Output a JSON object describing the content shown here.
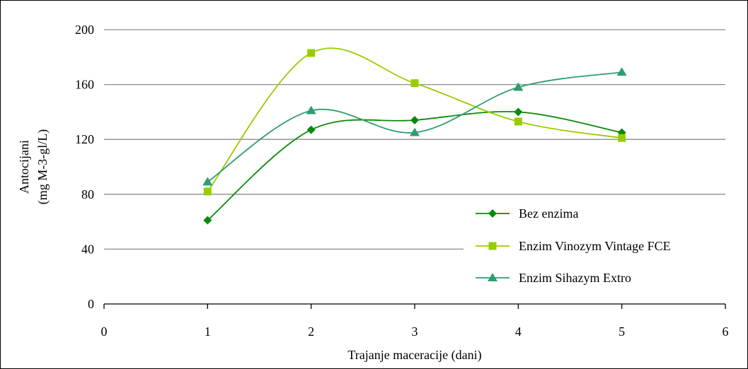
{
  "chart_data": {
    "type": "line",
    "title": "",
    "xlabel": "Trajanje maceracije (dani)",
    "ylabel": [
      "Antocijani",
      "(mg M-3-gl/L)"
    ],
    "x_ticks": [
      "0",
      "1",
      "2",
      "3",
      "4",
      "5",
      "6"
    ],
    "y_ticks": [
      "0",
      "40",
      "80",
      "120",
      "160",
      "200"
    ],
    "xlim": [
      0,
      6
    ],
    "ylim": [
      0,
      200
    ],
    "grid": "horizontal",
    "legend_position": "right",
    "smoothed": true,
    "series": [
      {
        "name": "Bez enzima",
        "marker": "diamond",
        "color": "#0a8a0a",
        "x": [
          1,
          2,
          3,
          4,
          5
        ],
        "y": [
          61,
          127,
          134,
          140,
          125
        ]
      },
      {
        "name": "Enzim Vinozym Vintage FCE",
        "marker": "square",
        "color": "#99cc00",
        "x": [
          1,
          2,
          3,
          4,
          5
        ],
        "y": [
          82,
          183,
          161,
          133,
          121
        ]
      },
      {
        "name": "Enzim Sihazym Extro",
        "marker": "triangle",
        "color": "#2e9e6e",
        "x": [
          1,
          2,
          3,
          4,
          5
        ],
        "y": [
          89,
          141,
          125,
          158,
          169
        ]
      }
    ]
  }
}
